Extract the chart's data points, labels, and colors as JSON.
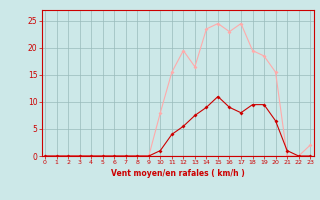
{
  "x_values": [
    0,
    1,
    2,
    3,
    4,
    5,
    6,
    7,
    8,
    9,
    10,
    11,
    12,
    13,
    14,
    15,
    16,
    17,
    18,
    19,
    20,
    21,
    22,
    23
  ],
  "y_moyen": [
    0,
    0,
    0,
    0,
    0,
    0,
    0,
    0,
    0,
    0,
    1,
    4,
    5.5,
    7.5,
    9,
    11,
    9,
    8,
    9.5,
    9.5,
    6.5,
    1,
    0,
    0
  ],
  "y_rafales": [
    0,
    0,
    0,
    0,
    0,
    0,
    0,
    0,
    0,
    0,
    8,
    15.5,
    19.5,
    16.5,
    23.5,
    24.5,
    23,
    24.5,
    19.5,
    18.5,
    15.5,
    0,
    0,
    2
  ],
  "color_moyen": "#cc0000",
  "color_rafales": "#ffaaaa",
  "bg_color": "#cce8e8",
  "grid_color": "#99bbbb",
  "axis_color": "#cc0000",
  "xlabel": "Vent moyen/en rafales ( km/h )",
  "yticks": [
    0,
    5,
    10,
    15,
    20,
    25
  ],
  "xticks": [
    0,
    1,
    2,
    3,
    4,
    5,
    6,
    7,
    8,
    9,
    10,
    11,
    12,
    13,
    14,
    15,
    16,
    17,
    18,
    19,
    20,
    21,
    22,
    23
  ],
  "ylim": [
    0,
    27
  ],
  "xlim": [
    -0.3,
    23.3
  ]
}
